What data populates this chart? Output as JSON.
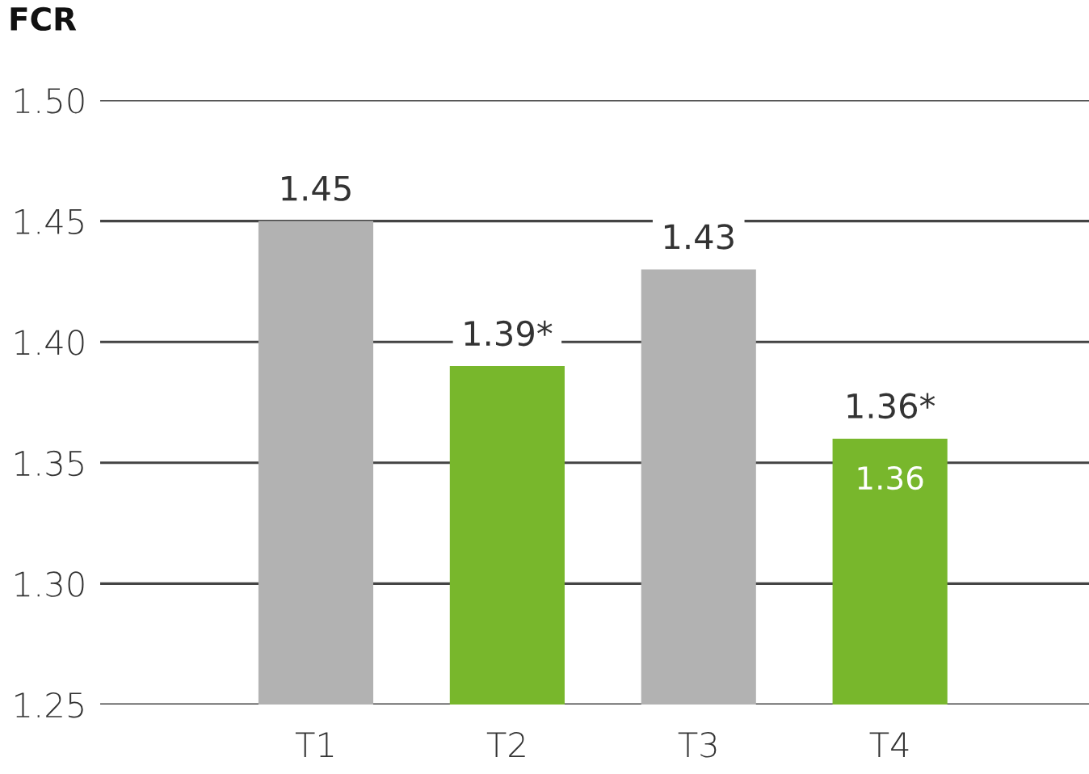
{
  "chart_data": {
    "type": "bar",
    "title": "FCR",
    "categories": [
      "T1",
      "T2",
      "T3",
      "T4"
    ],
    "values": [
      1.45,
      1.39,
      1.43,
      1.36
    ],
    "colors": [
      "#b2b2b2",
      "#78b72c",
      "#b2b2b2",
      "#78b72c"
    ],
    "value_labels": [
      "1.45",
      "1.39*",
      "1.43",
      "1.36*"
    ],
    "annotations": [
      {
        "text": "1.36",
        "x": "T4",
        "y": 1.36
      }
    ],
    "ylim": [
      1.25,
      1.5
    ],
    "yticks": [
      1.25,
      {
        "value": 1.3,
        "label": "1.30"
      },
      1.35,
      {
        "value": 1.4,
        "label": "1.40"
      },
      1.45,
      {
        "value": 1.5,
        "label": "1.50"
      }
    ],
    "grid": "y"
  }
}
